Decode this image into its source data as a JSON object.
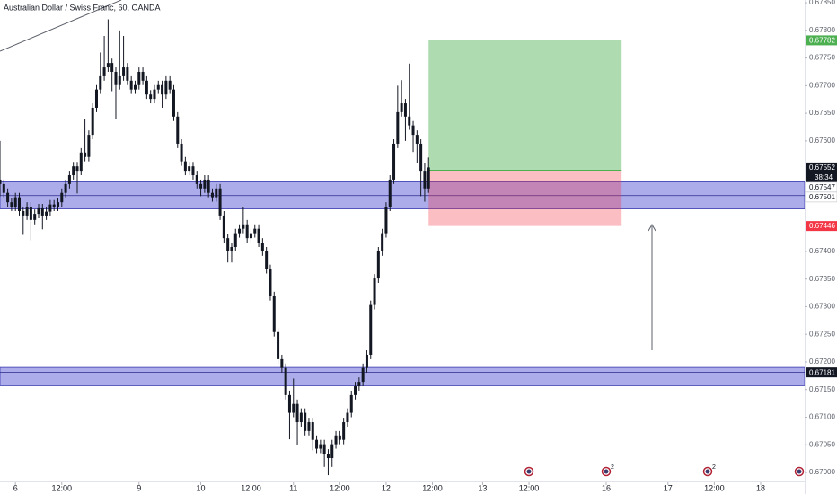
{
  "chart_data": {
    "type": "candlestick",
    "title": "Australian Dollar / Swiss Franc, 60, OANDA",
    "color": "#131722",
    "ohlc": [
      [
        0.6753,
        0.676,
        0.675,
        0.67522
      ],
      [
        0.67522,
        0.6753,
        0.67498,
        0.67506
      ],
      [
        0.67506,
        0.67514,
        0.67481,
        0.67489
      ],
      [
        0.67489,
        0.67497,
        0.67473,
        0.67481
      ],
      [
        0.67481,
        0.67506,
        0.67473,
        0.67498
      ],
      [
        0.67498,
        0.67506,
        0.67465,
        0.67473
      ],
      [
        0.67473,
        0.67481,
        0.6743,
        0.67465
      ],
      [
        0.67465,
        0.67489,
        0.67457,
        0.67481
      ],
      [
        0.67481,
        0.67489,
        0.6742,
        0.67457
      ],
      [
        0.67457,
        0.67476,
        0.67449,
        0.67468
      ],
      [
        0.67468,
        0.67486,
        0.6746,
        0.67478
      ],
      [
        0.67478,
        0.67486,
        0.6744,
        0.67465
      ],
      [
        0.67465,
        0.6748,
        0.67457,
        0.67472
      ],
      [
        0.67472,
        0.67493,
        0.67464,
        0.67485
      ],
      [
        0.67485,
        0.67493,
        0.67473,
        0.67481
      ],
      [
        0.67481,
        0.67497,
        0.67473,
        0.67489
      ],
      [
        0.67489,
        0.67514,
        0.67481,
        0.67506
      ],
      [
        0.67506,
        0.6753,
        0.67498,
        0.67522
      ],
      [
        0.67522,
        0.67546,
        0.67514,
        0.67538
      ],
      [
        0.67538,
        0.67562,
        0.6753,
        0.67554
      ],
      [
        0.67554,
        0.67562,
        0.67505,
        0.67546
      ],
      [
        0.67546,
        0.67587,
        0.67538,
        0.67579
      ],
      [
        0.67579,
        0.6764,
        0.67563,
        0.67571
      ],
      [
        0.67571,
        0.67619,
        0.67563,
        0.67611
      ],
      [
        0.67611,
        0.67668,
        0.67603,
        0.6766
      ],
      [
        0.6766,
        0.67701,
        0.67652,
        0.67693
      ],
      [
        0.67693,
        0.6776,
        0.67685,
        0.67717
      ],
      [
        0.67717,
        0.6779,
        0.67709,
        0.67733
      ],
      [
        0.67733,
        0.6782,
        0.67725,
        0.67741
      ],
      [
        0.67741,
        0.67749,
        0.6769,
        0.67725
      ],
      [
        0.67725,
        0.67733,
        0.6764,
        0.67701
      ],
      [
        0.67701,
        0.678,
        0.67693,
        0.67717
      ],
      [
        0.67717,
        0.6779,
        0.67709,
        0.67733
      ],
      [
        0.67733,
        0.67741,
        0.67701,
        0.67709
      ],
      [
        0.67709,
        0.67717,
        0.67685,
        0.67693
      ],
      [
        0.67693,
        0.67709,
        0.67685,
        0.67701
      ],
      [
        0.67701,
        0.67733,
        0.67693,
        0.67725
      ],
      [
        0.67725,
        0.67733,
        0.67701,
        0.67709
      ],
      [
        0.67709,
        0.67717,
        0.67676,
        0.67684
      ],
      [
        0.67684,
        0.67692,
        0.67668,
        0.67676
      ],
      [
        0.67676,
        0.67701,
        0.67668,
        0.67693
      ],
      [
        0.67693,
        0.67709,
        0.67685,
        0.67701
      ],
      [
        0.67701,
        0.67709,
        0.6766,
        0.67684
      ],
      [
        0.67684,
        0.67717,
        0.67676,
        0.67709
      ],
      [
        0.67709,
        0.67717,
        0.67685,
        0.67693
      ],
      [
        0.67693,
        0.67701,
        0.67636,
        0.67644
      ],
      [
        0.67644,
        0.67652,
        0.67587,
        0.67595
      ],
      [
        0.67595,
        0.67603,
        0.67555,
        0.67563
      ],
      [
        0.67563,
        0.67571,
        0.67538,
        0.67546
      ],
      [
        0.67546,
        0.67562,
        0.67538,
        0.67554
      ],
      [
        0.67554,
        0.67562,
        0.6753,
        0.67538
      ],
      [
        0.67538,
        0.67546,
        0.67514,
        0.67522
      ],
      [
        0.67522,
        0.6753,
        0.675,
        0.67514
      ],
      [
        0.67514,
        0.67538,
        0.67506,
        0.6753
      ],
      [
        0.6753,
        0.67538,
        0.67498,
        0.67506
      ],
      [
        0.67506,
        0.67514,
        0.6749,
        0.67498
      ],
      [
        0.67498,
        0.67522,
        0.6749,
        0.67514
      ],
      [
        0.67514,
        0.67522,
        0.67457,
        0.67465
      ],
      [
        0.67465,
        0.67473,
        0.67416,
        0.67424
      ],
      [
        0.67424,
        0.67432,
        0.6738,
        0.674
      ],
      [
        0.674,
        0.67416,
        0.6738,
        0.67408
      ],
      [
        0.67408,
        0.67441,
        0.674,
        0.67433
      ],
      [
        0.67433,
        0.67449,
        0.67425,
        0.67441
      ],
      [
        0.67441,
        0.6748,
        0.67433,
        0.67449
      ],
      [
        0.67449,
        0.67457,
        0.67416,
        0.67424
      ],
      [
        0.67424,
        0.67441,
        0.67416,
        0.67433
      ],
      [
        0.67433,
        0.67449,
        0.67425,
        0.67441
      ],
      [
        0.67441,
        0.67449,
        0.67408,
        0.67416
      ],
      [
        0.67416,
        0.67424,
        0.67392,
        0.674
      ],
      [
        0.674,
        0.67408,
        0.6736,
        0.67368
      ],
      [
        0.67368,
        0.67376,
        0.67311,
        0.67319
      ],
      [
        0.67319,
        0.67327,
        0.67246,
        0.67254
      ],
      [
        0.67254,
        0.67262,
        0.67197,
        0.67205
      ],
      [
        0.67205,
        0.67213,
        0.67181,
        0.67189
      ],
      [
        0.67189,
        0.67197,
        0.67132,
        0.6714
      ],
      [
        0.6714,
        0.67148,
        0.6706,
        0.67108
      ],
      [
        0.67108,
        0.6717,
        0.671,
        0.67124
      ],
      [
        0.67124,
        0.67132,
        0.6705,
        0.67091
      ],
      [
        0.67091,
        0.67116,
        0.67083,
        0.67108
      ],
      [
        0.67108,
        0.67116,
        0.67067,
        0.67075
      ],
      [
        0.67075,
        0.67099,
        0.67067,
        0.67091
      ],
      [
        0.67091,
        0.67099,
        0.6704,
        0.67059
      ],
      [
        0.67059,
        0.67067,
        0.67035,
        0.67043
      ],
      [
        0.67043,
        0.67059,
        0.67035,
        0.67051
      ],
      [
        0.67051,
        0.67059,
        0.6701,
        0.67034
      ],
      [
        0.67034,
        0.67042,
        0.66995,
        0.67026
      ],
      [
        0.67026,
        0.67059,
        0.6701,
        0.67051
      ],
      [
        0.67051,
        0.67075,
        0.67043,
        0.67067
      ],
      [
        0.67067,
        0.67075,
        0.67051,
        0.67059
      ],
      [
        0.67059,
        0.67099,
        0.67051,
        0.67091
      ],
      [
        0.67091,
        0.67116,
        0.67083,
        0.67108
      ],
      [
        0.67108,
        0.67148,
        0.671,
        0.6714
      ],
      [
        0.6714,
        0.67164,
        0.67132,
        0.67156
      ],
      [
        0.67156,
        0.67172,
        0.67148,
        0.67164
      ],
      [
        0.67164,
        0.67197,
        0.67156,
        0.67189
      ],
      [
        0.67189,
        0.67221,
        0.67181,
        0.67213
      ],
      [
        0.67213,
        0.67311,
        0.67205,
        0.67303
      ],
      [
        0.67303,
        0.67359,
        0.67295,
        0.67351
      ],
      [
        0.67351,
        0.67408,
        0.67343,
        0.674
      ],
      [
        0.674,
        0.67441,
        0.67392,
        0.67433
      ],
      [
        0.67433,
        0.67489,
        0.67425,
        0.67481
      ],
      [
        0.67481,
        0.67538,
        0.67473,
        0.6753
      ],
      [
        0.6753,
        0.67603,
        0.67522,
        0.67595
      ],
      [
        0.67595,
        0.677,
        0.67587,
        0.67652
      ],
      [
        0.67652,
        0.6771,
        0.67644,
        0.67668
      ],
      [
        0.67668,
        0.67676,
        0.676,
        0.67644
      ],
      [
        0.67644,
        0.6774,
        0.6762,
        0.67628
      ],
      [
        0.67628,
        0.67636,
        0.6758,
        0.67611
      ],
      [
        0.67611,
        0.67619,
        0.6756,
        0.67595
      ],
      [
        0.67595,
        0.67603,
        0.675,
        0.67546
      ],
      [
        0.67546,
        0.6756,
        0.6749,
        0.67514
      ],
      [
        0.67514,
        0.6757,
        0.67506,
        0.67552
      ]
    ],
    "xlim": [
      0,
      208.4
    ],
    "xticks": [
      {
        "value": 4,
        "label": "6"
      },
      {
        "value": 16,
        "label": "12:00"
      },
      {
        "value": 36,
        "label": "9"
      },
      {
        "value": 52,
        "label": "10"
      },
      {
        "value": 65,
        "label": "12:00"
      },
      {
        "value": 76,
        "label": "11"
      },
      {
        "value": 88,
        "label": "12:00"
      },
      {
        "value": 100,
        "label": "12"
      },
      {
        "value": 112,
        "label": "12:00"
      },
      {
        "value": 125,
        "label": "13"
      },
      {
        "value": 137,
        "label": "12:00"
      },
      {
        "value": 157,
        "label": "16"
      },
      {
        "value": 173,
        "label": "17"
      },
      {
        "value": 185,
        "label": "12:00"
      },
      {
        "value": 197,
        "label": "18"
      }
    ],
    "ylim": [
      0.66961,
      0.67855
    ],
    "yticks": [
      {
        "value": 0.6785,
        "label": "0.67850"
      },
      {
        "value": 0.678,
        "label": "0.67800"
      },
      {
        "value": 0.6775,
        "label": "0.67750"
      },
      {
        "value": 0.677,
        "label": "0.67700"
      },
      {
        "value": 0.6765,
        "label": "0.67650"
      },
      {
        "value": 0.676,
        "label": "0.67600"
      },
      {
        "value": 0.674,
        "label": "0.67400"
      },
      {
        "value": 0.6735,
        "label": "0.67350"
      },
      {
        "value": 0.673,
        "label": "0.67300"
      },
      {
        "value": 0.6725,
        "label": "0.67250"
      },
      {
        "value": 0.672,
        "label": "0.67200"
      },
      {
        "value": 0.6715,
        "label": "0.67150"
      },
      {
        "value": 0.671,
        "label": "0.67100"
      },
      {
        "value": 0.6705,
        "label": "0.67050"
      },
      {
        "value": 0.67,
        "label": "0.67000"
      }
    ],
    "grid": false,
    "zones": [
      {
        "top": 0.67526,
        "mid": 0.67501,
        "bottom": 0.67477,
        "label": "0.67501"
      },
      {
        "top": 0.6719,
        "mid": 0.67181,
        "bottom": 0.67157,
        "label": "0.67181"
      }
    ],
    "position": {
      "start": 111,
      "end": 161,
      "entry": 0.67547,
      "entry_label": "0.67547",
      "target": 0.67782,
      "target_label": "0.67782",
      "stop": 0.67446,
      "stop_label": "0.67446"
    },
    "last_price": 0.67552,
    "last_price_label": "0.67552",
    "countdown": "38:34",
    "events": [
      "2",
      "2"
    ]
  }
}
